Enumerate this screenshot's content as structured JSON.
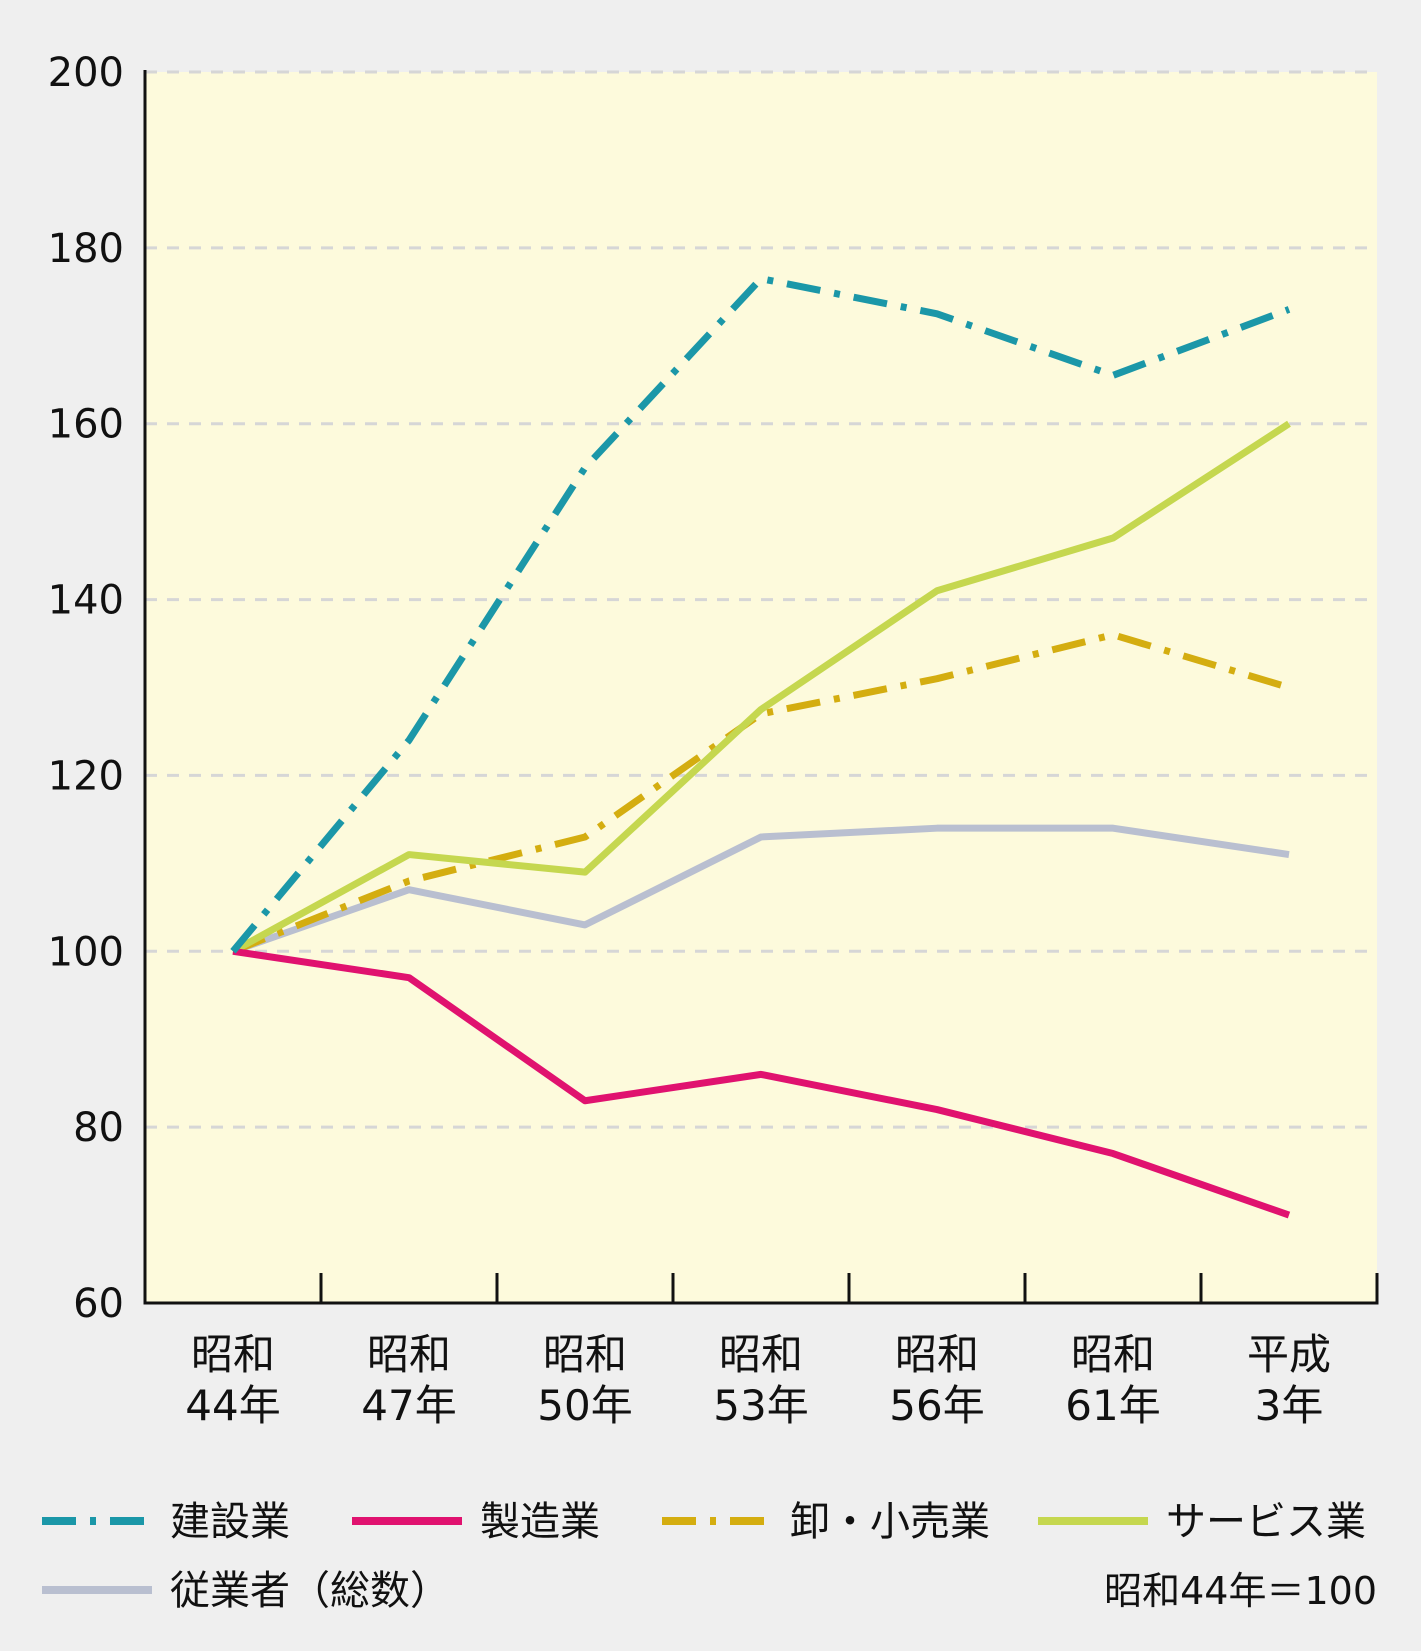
{
  "chart_data": {
    "type": "line",
    "categories": [
      [
        "昭和",
        "44年"
      ],
      [
        "昭和",
        "47年"
      ],
      [
        "昭和",
        "50年"
      ],
      [
        "昭和",
        "53年"
      ],
      [
        "昭和",
        "56年"
      ],
      [
        "昭和",
        "61年"
      ],
      [
        "平成",
        "3年"
      ]
    ],
    "ylim": [
      60,
      200
    ],
    "yticks": [
      60,
      80,
      100,
      120,
      140,
      160,
      180,
      200
    ],
    "grid": true,
    "legend_position": "bottom",
    "background_color": "#fdfadc",
    "series": [
      {
        "name": "建設業",
        "color": "#1b97a8",
        "style": "dashdot",
        "values": [
          100,
          124,
          155,
          176.5,
          172.5,
          165.5,
          173
        ]
      },
      {
        "name": "製造業",
        "color": "#e0126f",
        "style": "solid",
        "values": [
          100,
          97,
          83,
          86,
          82,
          77,
          70
        ]
      },
      {
        "name": "卸・小売業",
        "color": "#d4ad10",
        "style": "dashdot",
        "values": [
          100,
          108,
          113,
          127,
          131,
          136,
          130
        ]
      },
      {
        "name": "サービス業",
        "color": "#c5d74f",
        "style": "solid",
        "values": [
          100,
          111,
          109,
          127.5,
          141,
          147,
          160
        ]
      },
      {
        "name": "従業者（総数）",
        "color": "#b9bfd0",
        "style": "solid",
        "values": [
          100,
          107,
          103,
          113,
          114,
          114,
          111
        ]
      }
    ],
    "note": "昭和44年＝100"
  }
}
